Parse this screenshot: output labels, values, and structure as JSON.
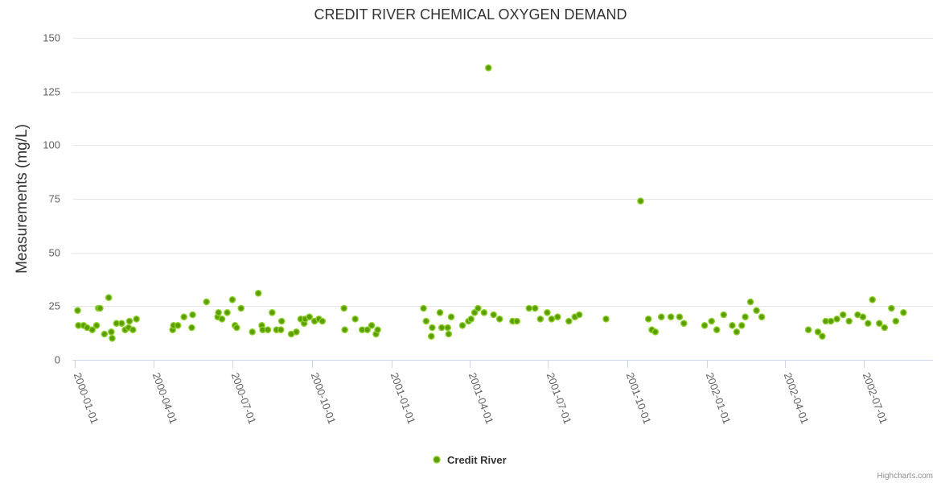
{
  "chart_data": {
    "type": "scatter",
    "title": "CREDIT RIVER CHEMICAL OXYGEN DEMAND",
    "ylabel": "Measurements (mg/L)",
    "xlabel": "",
    "ylim": [
      0,
      150
    ],
    "yticks": [
      0,
      25,
      50,
      75,
      100,
      125,
      150
    ],
    "xticks": [
      "2000-01-01",
      "2000-04-01",
      "2000-07-01",
      "2000-10-01",
      "2001-01-01",
      "2001-04-01",
      "2001-07-01",
      "2001-10-01",
      "2002-01-01",
      "2002-04-01",
      "2002-07-01"
    ],
    "xlim": [
      "1999-12-29",
      "2002-09-19"
    ],
    "grid": true,
    "legend_position": "bottom-center",
    "credits": "Highcharts.com",
    "series": [
      {
        "name": "Credit River",
        "color": "#5c9e00",
        "marker_outline": "#8ccf2a",
        "points": [
          [
            "2000-01-04",
            23
          ],
          [
            "2000-01-05",
            16
          ],
          [
            "2000-01-11",
            16
          ],
          [
            "2000-01-15",
            15
          ],
          [
            "2000-01-21",
            14
          ],
          [
            "2000-01-26",
            16
          ],
          [
            "2000-01-28",
            24
          ],
          [
            "2000-01-30",
            24
          ],
          [
            "2000-02-04",
            12
          ],
          [
            "2000-02-09",
            29
          ],
          [
            "2000-02-12",
            13
          ],
          [
            "2000-02-13",
            10
          ],
          [
            "2000-02-18",
            17
          ],
          [
            "2000-02-24",
            17
          ],
          [
            "2000-02-28",
            14
          ],
          [
            "2000-03-03",
            15
          ],
          [
            "2000-03-04",
            18
          ],
          [
            "2000-03-08",
            14
          ],
          [
            "2000-03-12",
            19
          ],
          [
            "2000-04-23",
            14
          ],
          [
            "2000-04-24",
            16
          ],
          [
            "2000-04-29",
            16
          ],
          [
            "2000-05-06",
            20
          ],
          [
            "2000-05-15",
            15
          ],
          [
            "2000-05-16",
            21
          ],
          [
            "2000-06-01",
            27
          ],
          [
            "2000-06-14",
            20
          ],
          [
            "2000-06-15",
            22
          ],
          [
            "2000-06-19",
            19
          ],
          [
            "2000-06-25",
            22
          ],
          [
            "2000-07-01",
            28
          ],
          [
            "2000-07-04",
            16
          ],
          [
            "2000-07-06",
            15
          ],
          [
            "2000-07-11",
            24
          ],
          [
            "2000-07-24",
            13
          ],
          [
            "2000-07-31",
            31
          ],
          [
            "2000-08-04",
            16
          ],
          [
            "2000-08-05",
            14
          ],
          [
            "2000-08-11",
            14
          ],
          [
            "2000-08-16",
            22
          ],
          [
            "2000-08-21",
            14
          ],
          [
            "2000-08-26",
            14
          ],
          [
            "2000-08-27",
            18
          ],
          [
            "2000-09-07",
            12
          ],
          [
            "2000-09-13",
            13
          ],
          [
            "2000-09-18",
            19
          ],
          [
            "2000-09-22",
            17
          ],
          [
            "2000-09-23",
            19
          ],
          [
            "2000-09-28",
            20
          ],
          [
            "2000-10-04",
            18
          ],
          [
            "2000-10-09",
            19
          ],
          [
            "2000-10-13",
            18
          ],
          [
            "2000-11-07",
            24
          ],
          [
            "2000-11-08",
            14
          ],
          [
            "2000-11-20",
            19
          ],
          [
            "2000-11-28",
            14
          ],
          [
            "2000-12-04",
            14
          ],
          [
            "2000-12-09",
            16
          ],
          [
            "2000-12-14",
            12
          ],
          [
            "2000-12-16",
            14
          ],
          [
            "2001-02-07",
            24
          ],
          [
            "2001-02-10",
            18
          ],
          [
            "2001-02-16",
            11
          ],
          [
            "2001-02-17",
            15
          ],
          [
            "2001-02-26",
            22
          ],
          [
            "2001-02-28",
            15
          ],
          [
            "2001-03-07",
            15
          ],
          [
            "2001-03-08",
            12
          ],
          [
            "2001-03-11",
            20
          ],
          [
            "2001-03-24",
            16
          ],
          [
            "2001-03-31",
            18
          ],
          [
            "2001-04-03",
            19
          ],
          [
            "2001-04-07",
            22
          ],
          [
            "2001-04-11",
            24
          ],
          [
            "2001-04-18",
            22
          ],
          [
            "2001-04-23",
            136
          ],
          [
            "2001-04-29",
            21
          ],
          [
            "2001-05-06",
            19
          ],
          [
            "2001-05-21",
            18
          ],
          [
            "2001-05-26",
            18
          ],
          [
            "2001-06-09",
            24
          ],
          [
            "2001-06-16",
            24
          ],
          [
            "2001-06-22",
            19
          ],
          [
            "2001-06-30",
            22
          ],
          [
            "2001-07-05",
            19
          ],
          [
            "2001-07-12",
            20
          ],
          [
            "2001-07-25",
            18
          ],
          [
            "2001-08-01",
            20
          ],
          [
            "2001-08-06",
            21
          ],
          [
            "2001-09-06",
            19
          ],
          [
            "2001-10-16",
            74
          ],
          [
            "2001-10-25",
            19
          ],
          [
            "2001-10-29",
            14
          ],
          [
            "2001-11-02",
            13
          ],
          [
            "2001-11-09",
            20
          ],
          [
            "2001-11-20",
            20
          ],
          [
            "2001-11-30",
            20
          ],
          [
            "2001-12-05",
            17
          ],
          [
            "2001-12-29",
            16
          ],
          [
            "2002-01-06",
            18
          ],
          [
            "2002-01-12",
            14
          ],
          [
            "2002-01-20",
            21
          ],
          [
            "2002-01-30",
            16
          ],
          [
            "2002-02-04",
            13
          ],
          [
            "2002-02-10",
            16
          ],
          [
            "2002-02-14",
            20
          ],
          [
            "2002-02-20",
            27
          ],
          [
            "2002-02-27",
            23
          ],
          [
            "2002-03-05",
            20
          ],
          [
            "2002-04-28",
            14
          ],
          [
            "2002-05-09",
            13
          ],
          [
            "2002-05-14",
            11
          ],
          [
            "2002-05-18",
            18
          ],
          [
            "2002-05-24",
            18
          ],
          [
            "2002-05-31",
            19
          ],
          [
            "2002-06-07",
            21
          ],
          [
            "2002-06-14",
            18
          ],
          [
            "2002-06-24",
            21
          ],
          [
            "2002-06-30",
            20
          ],
          [
            "2002-07-06",
            17
          ],
          [
            "2002-07-11",
            28
          ],
          [
            "2002-07-19",
            17
          ],
          [
            "2002-07-25",
            15
          ],
          [
            "2002-08-02",
            24
          ],
          [
            "2002-08-07",
            18
          ],
          [
            "2002-08-16",
            22
          ]
        ]
      }
    ]
  }
}
